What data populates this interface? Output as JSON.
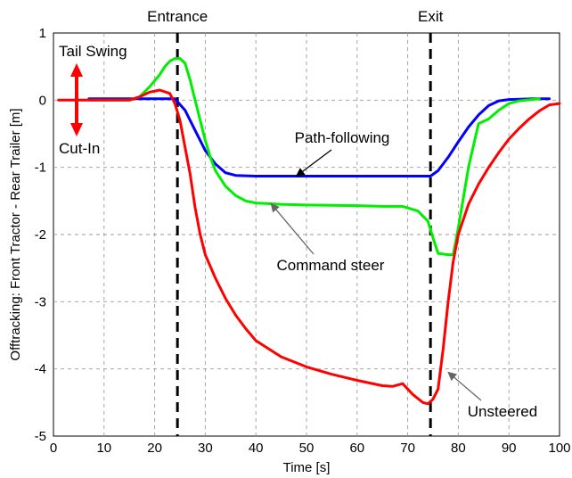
{
  "chart_data": {
    "type": "line",
    "xlabel": "Time [s]",
    "ylabel": "Offtracking: Front Tractor - Rear Trailer [m]",
    "xlim": [
      0,
      100
    ],
    "ylim": [
      -5,
      1
    ],
    "xticks": [
      0,
      10,
      20,
      30,
      40,
      50,
      60,
      70,
      80,
      90,
      100
    ],
    "yticks": [
      1,
      0,
      -1,
      -2,
      -3,
      -4,
      -5
    ],
    "grid": true,
    "colors": {
      "path_following": "#0000ff",
      "command_steer": "#00ee00",
      "unsteered": "#ff0000",
      "tail_arrow": "#ff0000"
    },
    "series": [
      {
        "name": "Path-following",
        "color": "#0000ff",
        "points": [
          [
            7,
            0.02
          ],
          [
            15,
            0.02
          ],
          [
            24,
            0.02
          ],
          [
            26,
            -0.15
          ],
          [
            28,
            -0.45
          ],
          [
            30,
            -0.75
          ],
          [
            32,
            -0.95
          ],
          [
            34,
            -1.08
          ],
          [
            36,
            -1.12
          ],
          [
            40,
            -1.13
          ],
          [
            50,
            -1.13
          ],
          [
            60,
            -1.13
          ],
          [
            70,
            -1.13
          ],
          [
            74.5,
            -1.13
          ],
          [
            76,
            -1.05
          ],
          [
            78,
            -0.85
          ],
          [
            80,
            -0.62
          ],
          [
            82,
            -0.4
          ],
          [
            84,
            -0.22
          ],
          [
            86,
            -0.08
          ],
          [
            88,
            -0.01
          ],
          [
            90,
            0.01
          ],
          [
            95,
            0.02
          ],
          [
            98,
            0.02
          ]
        ]
      },
      {
        "name": "Command steer",
        "color": "#00ee00",
        "points": [
          [
            7,
            0
          ],
          [
            15,
            0
          ],
          [
            17,
            0.05
          ],
          [
            19,
            0.2
          ],
          [
            21,
            0.38
          ],
          [
            22,
            0.5
          ],
          [
            23,
            0.58
          ],
          [
            24,
            0.62
          ],
          [
            25,
            0.62
          ],
          [
            26,
            0.55
          ],
          [
            27,
            0.3
          ],
          [
            28,
            0
          ],
          [
            29,
            -0.3
          ],
          [
            30,
            -0.6
          ],
          [
            31,
            -0.85
          ],
          [
            32,
            -1.05
          ],
          [
            34,
            -1.28
          ],
          [
            36,
            -1.42
          ],
          [
            38,
            -1.5
          ],
          [
            40,
            -1.53
          ],
          [
            45,
            -1.55
          ],
          [
            50,
            -1.56
          ],
          [
            60,
            -1.57
          ],
          [
            65,
            -1.58
          ],
          [
            69,
            -1.58
          ],
          [
            72,
            -1.65
          ],
          [
            74,
            -1.8
          ],
          [
            75,
            -2.05
          ],
          [
            76,
            -2.28
          ],
          [
            78,
            -2.3
          ],
          [
            79,
            -2.3
          ],
          [
            80,
            -1.9
          ],
          [
            82,
            -1.0
          ],
          [
            84,
            -0.35
          ],
          [
            86,
            -0.28
          ],
          [
            88,
            -0.15
          ],
          [
            90,
            -0.05
          ],
          [
            92,
            -0.01
          ],
          [
            96,
            0.02
          ]
        ]
      },
      {
        "name": "Unsteered",
        "color": "#ff0000",
        "points": [
          [
            1,
            0
          ],
          [
            15,
            0
          ],
          [
            17,
            0.05
          ],
          [
            19,
            0.12
          ],
          [
            21,
            0.15
          ],
          [
            23,
            0.1
          ],
          [
            24,
            -0.05
          ],
          [
            25,
            -0.3
          ],
          [
            26,
            -0.7
          ],
          [
            27,
            -1.1
          ],
          [
            28,
            -1.6
          ],
          [
            29,
            -2.0
          ],
          [
            30,
            -2.3
          ],
          [
            32,
            -2.65
          ],
          [
            34,
            -2.95
          ],
          [
            36,
            -3.2
          ],
          [
            38,
            -3.4
          ],
          [
            40,
            -3.58
          ],
          [
            45,
            -3.82
          ],
          [
            50,
            -3.97
          ],
          [
            55,
            -4.08
          ],
          [
            60,
            -4.17
          ],
          [
            65,
            -4.25
          ],
          [
            67,
            -4.26
          ],
          [
            69,
            -4.22
          ],
          [
            71,
            -4.38
          ],
          [
            73,
            -4.5
          ],
          [
            74,
            -4.52
          ],
          [
            75,
            -4.45
          ],
          [
            76,
            -4.3
          ],
          [
            77,
            -3.7
          ],
          [
            78,
            -3.0
          ],
          [
            79,
            -2.4
          ],
          [
            80,
            -2.0
          ],
          [
            82,
            -1.55
          ],
          [
            84,
            -1.25
          ],
          [
            86,
            -1.0
          ],
          [
            88,
            -0.78
          ],
          [
            90,
            -0.58
          ],
          [
            92,
            -0.42
          ],
          [
            94,
            -0.28
          ],
          [
            96,
            -0.16
          ],
          [
            98,
            -0.07
          ],
          [
            100,
            -0.05
          ]
        ]
      }
    ],
    "vlines": [
      {
        "x": 24.5,
        "label": "Entrance"
      },
      {
        "x": 74.5,
        "label": "Exit"
      }
    ],
    "annotations": [
      {
        "text": "Path-following",
        "target": [
          48,
          -1.13
        ]
      },
      {
        "text": "Command steer",
        "target": [
          43,
          -1.54
        ]
      },
      {
        "text": "Unsteered",
        "target": [
          78,
          -4.05
        ]
      }
    ],
    "side_labels": {
      "top": "Tail Swing",
      "bottom": "Cut-In"
    }
  }
}
